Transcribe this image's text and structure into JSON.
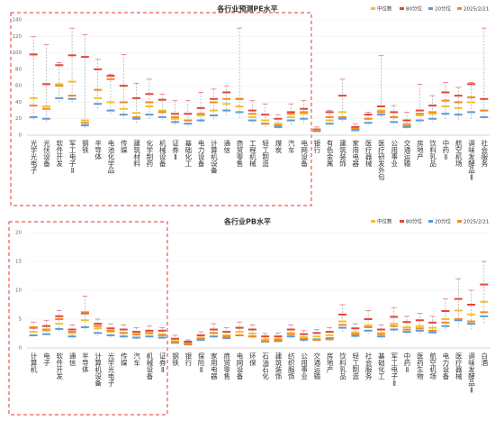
{
  "chart_data": [
    {
      "type": "range",
      "title": "各行业预测PE水平",
      "categories": [
        "光学光电子",
        "光伏设备",
        "软件开发",
        "军工电子Ⅱ",
        "钢铁",
        "半导体",
        "电池化学品",
        "传媒",
        "建筑材料",
        "化学制药",
        "机械设备",
        "证券Ⅱ",
        "基础化工",
        "电力设备",
        "计算机设备",
        "通信",
        "商贸零售",
        "工程机械",
        "轻工制造",
        "煤炭",
        "汽车",
        "电网设备",
        "银行",
        "有色金属",
        "建筑装饰",
        "家用电器",
        "医疗器械",
        "医疗研发外包",
        "公用事业",
        "交通运输",
        "房地产",
        "饮料乳品",
        "中药Ⅱ",
        "航空机场",
        "调味发酵品Ⅱ",
        "社会服务"
      ],
      "series": [
        {
          "name": "中位数",
          "color": "#f2c12e",
          "values": [
            45,
            35,
            62,
            65,
            18,
            45,
            40,
            32,
            27,
            35,
            30,
            20,
            18,
            24,
            30,
            38,
            35,
            22,
            18,
            14,
            22,
            26,
            6,
            18,
            28,
            8,
            20,
            30,
            22,
            14,
            24,
            26,
            35,
            33,
            40,
            30
          ]
        },
        {
          "name": "80分位",
          "color": "#e0463c",
          "values": [
            98,
            62,
            85,
            97,
            95,
            80,
            72,
            60,
            45,
            50,
            43,
            26,
            26,
            33,
            44,
            52,
            44,
            30,
            25,
            20,
            28,
            32,
            7,
            28,
            48,
            10,
            25,
            35,
            28,
            18,
            30,
            36,
            52,
            48,
            62,
            44
          ]
        },
        {
          "name": "20分位",
          "color": "#5b9bd5",
          "values": [
            22,
            20,
            45,
            44,
            12,
            38,
            30,
            25,
            20,
            25,
            22,
            16,
            14,
            18,
            24,
            30,
            28,
            18,
            14,
            10,
            18,
            20,
            5,
            14,
            20,
            6,
            15,
            25,
            16,
            10,
            18,
            20,
            26,
            25,
            28,
            22
          ]
        },
        {
          "name": "2025/2/21",
          "color": "#f08a24",
          "values": [
            36,
            32,
            60,
            48,
            15,
            55,
            68,
            40,
            22,
            40,
            28,
            22,
            18,
            26,
            40,
            44,
            44,
            26,
            14,
            12,
            26,
            28,
            6,
            22,
            22,
            8,
            20,
            28,
            22,
            12,
            26,
            28,
            42,
            40,
            46,
            30
          ]
        }
      ],
      "whisker_high": [
        120,
        110,
        88,
        130,
        122,
        92,
        74,
        98,
        63,
        68,
        50,
        42,
        42,
        52,
        56,
        60,
        130,
        42,
        38,
        25,
        38,
        42,
        10,
        30,
        68,
        14,
        28,
        97,
        36,
        28,
        62,
        48,
        64,
        58,
        64,
        130
      ],
      "whisker_low": [
        18,
        15,
        40,
        38,
        8,
        32,
        25,
        20,
        15,
        20,
        18,
        12,
        10,
        14,
        18,
        24,
        20,
        14,
        10,
        6,
        12,
        14,
        4,
        10,
        16,
        5,
        12,
        20,
        12,
        8,
        14,
        16,
        20,
        18,
        20,
        18
      ],
      "ylim": [
        0,
        140
      ],
      "yticks": [
        0,
        20,
        40,
        60,
        80,
        100,
        120,
        140
      ]
    },
    {
      "type": "range",
      "title": "各行业PB水平",
      "categories": [
        "计算机",
        "电子",
        "软件开发",
        "通信",
        "半导体",
        "计算机设备",
        "光学光电子",
        "传媒",
        "汽车",
        "机械设备",
        "证券Ⅱ",
        "钢铁",
        "银行",
        "保险Ⅱ",
        "家用电器",
        "商贸零售",
        "电网设备",
        "环保",
        "石油石化",
        "建筑装饰",
        "纺织服饰",
        "公用事业",
        "交通运输",
        "房地产",
        "饮料乳品",
        "轻工制造",
        "社会服务",
        "基础化工",
        "军工电子Ⅱ",
        "中药Ⅱ",
        "医药生物",
        "航空机场",
        "电力设备",
        "医疗器械",
        "调味发酵品Ⅱ",
        "白酒"
      ],
      "series": [
        {
          "name": "中位数",
          "color": "#f2c12e",
          "values": [
            2.8,
            3.0,
            4.2,
            2.6,
            4.8,
            3.4,
            2.8,
            2.6,
            2.3,
            2.5,
            2.4,
            1.2,
            0.9,
            1.8,
            2.6,
            2.2,
            2.8,
            2.5,
            1.5,
            1.6,
            2.6,
            1.9,
            2.0,
            2.2,
            4.6,
            2.7,
            3.9,
            2.6,
            4.2,
            3.6,
            3.8,
            3.5,
            5.0,
            6.5,
            5.8,
            8.0
          ]
        },
        {
          "name": "80分位",
          "color": "#e0463c",
          "values": [
            3.5,
            3.8,
            5.5,
            3.2,
            6.0,
            4.2,
            3.4,
            3.2,
            2.8,
            3.0,
            3.0,
            1.6,
            1.1,
            2.2,
            3.2,
            2.8,
            3.5,
            3.2,
            2.0,
            2.0,
            3.2,
            2.4,
            2.6,
            2.8,
            5.8,
            3.4,
            5.0,
            3.2,
            5.4,
            4.5,
            4.8,
            4.4,
            6.4,
            8.5,
            7.5,
            11.0
          ]
        },
        {
          "name": "20分位",
          "color": "#5b9bd5",
          "values": [
            2.2,
            2.4,
            3.3,
            2.0,
            3.6,
            2.6,
            2.2,
            2.0,
            1.8,
            2.0,
            1.8,
            0.9,
            0.7,
            1.4,
            2.0,
            1.7,
            2.2,
            2.0,
            1.1,
            1.2,
            2.0,
            1.4,
            1.5,
            1.7,
            3.5,
            2.1,
            3.0,
            2.0,
            3.2,
            2.8,
            3.0,
            2.7,
            3.8,
            4.8,
            4.2,
            5.5
          ]
        },
        {
          "name": "2025/2/21",
          "color": "#f08a24",
          "values": [
            3.6,
            3.2,
            5.0,
            2.8,
            6.2,
            3.8,
            3.0,
            2.6,
            2.4,
            2.6,
            2.2,
            1.0,
            0.6,
            1.6,
            2.6,
            2.0,
            2.2,
            2.0,
            1.2,
            1.4,
            2.4,
            1.6,
            1.4,
            1.5,
            4.0,
            2.4,
            3.6,
            2.4,
            3.8,
            3.2,
            3.4,
            3.0,
            4.4,
            5.0,
            4.6,
            6.2
          ]
        }
      ],
      "whisker_high": [
        4.5,
        4.8,
        6.5,
        4.0,
        9.0,
        5.0,
        4.2,
        4.0,
        3.5,
        3.8,
        3.5,
        2.2,
        1.4,
        2.8,
        4.2,
        3.5,
        4.5,
        4.0,
        2.5,
        2.6,
        4.0,
        3.0,
        3.2,
        3.5,
        7.5,
        4.2,
        6.5,
        4.0,
        7.0,
        5.5,
        6.0,
        5.5,
        8.5,
        12.0,
        10.0,
        15.0
      ],
      "whisker_low": [
        1.8,
        2.0,
        2.6,
        1.6,
        2.8,
        2.0,
        1.8,
        1.6,
        1.4,
        1.6,
        1.4,
        0.7,
        0.5,
        1.1,
        1.6,
        1.3,
        1.8,
        1.6,
        0.9,
        1.0,
        1.6,
        1.1,
        1.2,
        1.2,
        2.8,
        1.7,
        2.4,
        1.6,
        2.6,
        2.2,
        2.4,
        2.2,
        3.0,
        3.6,
        3.2,
        4.0
      ],
      "ylim": [
        0,
        20
      ],
      "yticks": [
        0,
        5,
        10,
        15,
        20
      ]
    }
  ]
}
